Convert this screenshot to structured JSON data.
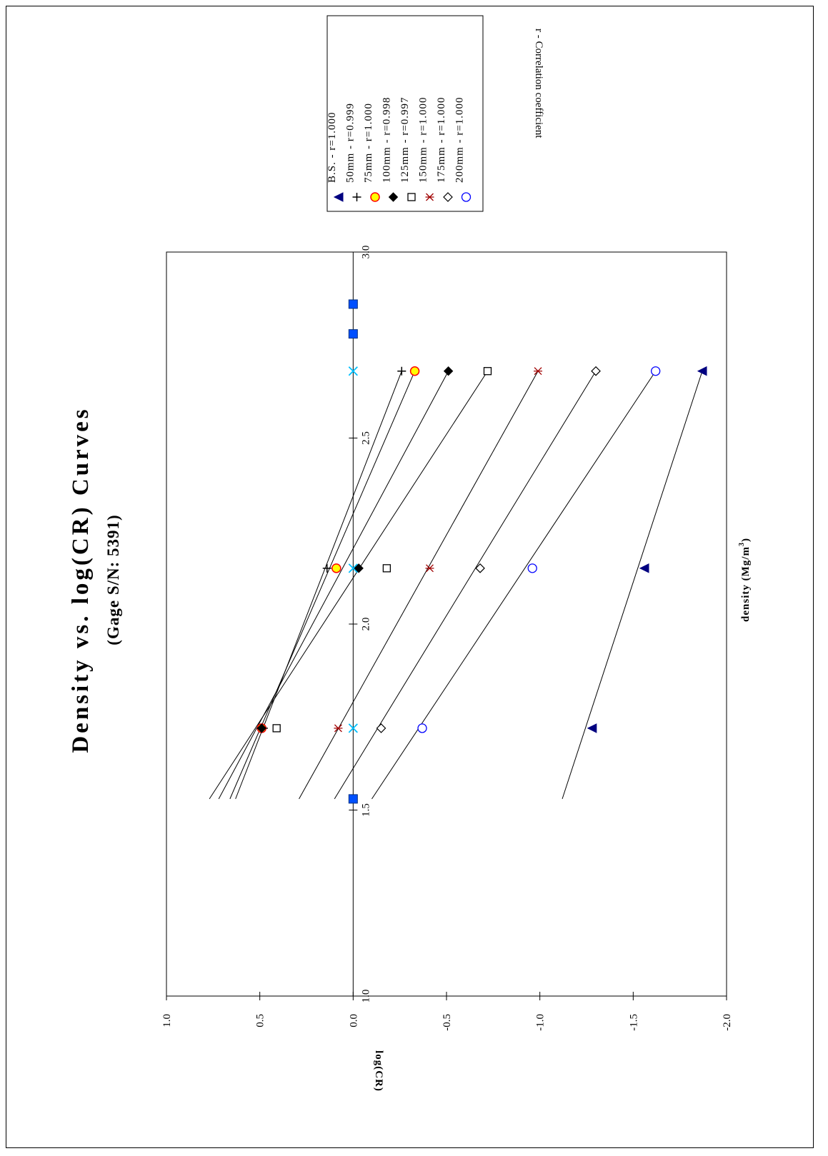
{
  "chart_data": {
    "type": "scatter",
    "title": "Density vs. log(CR) Curves",
    "subtitle": "(Gage S/N: 5391)",
    "xlabel": "density (Mg/m",
    "xlabel_sup": "3",
    "xlabel_close": ")",
    "ylabel": "log(CR)",
    "xlim": [
      1.0,
      3.0
    ],
    "ylim": [
      -2.0,
      1.0
    ],
    "x_ticks": [
      "1.0",
      "1.5",
      "2.0",
      "2.5",
      "3.0"
    ],
    "y_ticks": [
      "1.0",
      "0.5",
      "0.0",
      "-0.5",
      "-1.0",
      "-1.5",
      "-2.0"
    ],
    "legend_note": "r - Correlation coefficient",
    "legend_placement": "top-right",
    "series": [
      {
        "name": "B.S.",
        "label": "B.S.      - r=1.000",
        "marker": "filled-triangle",
        "color": "#000080",
        "x": [
          1.72,
          2.15,
          2.68
        ],
        "y": [
          -1.28,
          -1.56,
          -1.87
        ],
        "fit": [
          [
            1.53,
            -1.12
          ],
          [
            2.68,
            -1.87
          ]
        ]
      },
      {
        "name": "50mm",
        "label": "50mm   - r=0.999",
        "marker": "plus",
        "color": "#000000",
        "x": [
          1.72,
          2.15,
          2.68
        ],
        "y": [
          0.48,
          0.14,
          -0.26
        ],
        "fit": [
          [
            1.53,
            0.63
          ],
          [
            2.68,
            -0.26
          ]
        ]
      },
      {
        "name": "75mm",
        "label": "75mm   - r=1.000",
        "marker": "filled-circle",
        "color": "#ff0000",
        "fill": "#ffff00",
        "x": [
          1.72,
          2.15,
          2.68
        ],
        "y": [
          0.49,
          0.09,
          -0.33
        ],
        "fit": [
          [
            1.53,
            0.66
          ],
          [
            2.68,
            -0.33
          ]
        ]
      },
      {
        "name": "100mm",
        "label": "100mm - r=0.998",
        "marker": "filled-diamond",
        "color": "#000000",
        "x": [
          1.72,
          2.15,
          2.68
        ],
        "y": [
          0.49,
          -0.03,
          -0.51
        ],
        "fit": [
          [
            1.53,
            0.72
          ],
          [
            2.68,
            -0.51
          ]
        ]
      },
      {
        "name": "125mm",
        "label": "125mm - r=0.997",
        "marker": "open-square",
        "color": "#000000",
        "x": [
          1.72,
          2.15,
          2.68
        ],
        "y": [
          0.41,
          -0.18,
          -0.72
        ],
        "fit": [
          [
            1.53,
            0.77
          ],
          [
            2.68,
            -0.72
          ]
        ]
      },
      {
        "name": "150mm",
        "label": "150mm - r=1.000",
        "marker": "star",
        "color": "#a00000",
        "x": [
          1.72,
          2.15,
          2.68
        ],
        "y": [
          0.08,
          -0.41,
          -0.99
        ],
        "fit": [
          [
            1.53,
            0.29
          ],
          [
            2.68,
            -0.99
          ]
        ]
      },
      {
        "name": "175mm",
        "label": "175mm - r=1.000",
        "marker": "open-diamond",
        "color": "#000000",
        "x": [
          1.72,
          2.15,
          2.68
        ],
        "y": [
          -0.15,
          -0.68,
          -1.3
        ],
        "fit": [
          [
            1.53,
            0.1
          ],
          [
            2.68,
            -1.3
          ]
        ]
      },
      {
        "name": "200mm",
        "label": "200mm - r=1.000",
        "marker": "open-circle",
        "color": "#0000ff",
        "x": [
          1.72,
          2.15,
          2.68
        ],
        "y": [
          -0.37,
          -0.96,
          -1.62
        ],
        "fit": [
          [
            1.53,
            -0.1
          ],
          [
            2.68,
            -1.62
          ]
        ]
      }
    ],
    "extra_markers": [
      {
        "marker": "x-mark",
        "color": "#00c0ff",
        "x": [
          1.72,
          2.15,
          2.68
        ],
        "y": [
          0.0,
          0.0,
          0.0
        ]
      },
      {
        "marker": "blue-square",
        "color": "#0050ff",
        "x": [
          1.53,
          2.78,
          2.86
        ],
        "y": [
          0.0,
          0.0,
          0.0
        ]
      }
    ]
  }
}
